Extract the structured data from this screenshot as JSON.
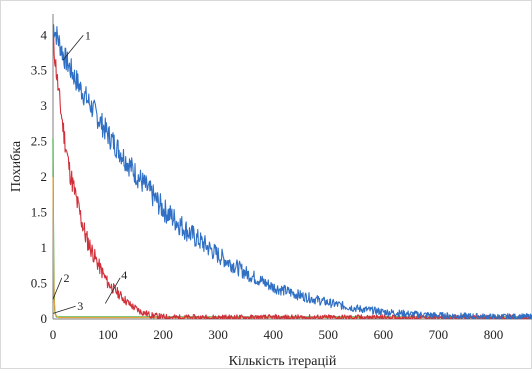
{
  "chart_data": {
    "type": "line",
    "title": "",
    "xlabel": "Кількість ітерацій",
    "ylabel": "Похибка",
    "xlim": [
      0,
      870
    ],
    "ylim": [
      0,
      4.3
    ],
    "x_ticks": [
      0,
      100,
      200,
      300,
      400,
      500,
      600,
      700,
      800
    ],
    "y_ticks": [
      0,
      0.5,
      1,
      1.5,
      2,
      2.5,
      3,
      3.5,
      4
    ],
    "grid": false,
    "legend": "none",
    "series": [
      {
        "label": "1",
        "color": "#2f6fc4",
        "noise": 0.17,
        "seed": 7,
        "points": [
          [
            0,
            4.15
          ],
          [
            20,
            3.7
          ],
          [
            50,
            3.25
          ],
          [
            100,
            2.6
          ],
          [
            150,
            2.05
          ],
          [
            200,
            1.55
          ],
          [
            250,
            1.2
          ],
          [
            300,
            0.9
          ],
          [
            350,
            0.65
          ],
          [
            400,
            0.45
          ],
          [
            450,
            0.33
          ],
          [
            500,
            0.23
          ],
          [
            550,
            0.15
          ],
          [
            600,
            0.1
          ],
          [
            650,
            0.07
          ],
          [
            700,
            0.05
          ],
          [
            750,
            0.04
          ],
          [
            800,
            0.03
          ],
          [
            870,
            0.03
          ]
        ]
      },
      {
        "label": "2",
        "color": "#e6a23c",
        "noise": 0.0,
        "seed": 3,
        "points": [
          [
            0,
            2.0
          ],
          [
            1,
            0.8
          ],
          [
            2,
            0.3
          ],
          [
            4,
            0.06
          ],
          [
            10,
            0.02
          ],
          [
            870,
            0.02
          ]
        ]
      },
      {
        "label": "3",
        "color": "#33a532",
        "noise": 0.0,
        "seed": 5,
        "points": [
          [
            0,
            2.55
          ],
          [
            1,
            1.2
          ],
          [
            2,
            0.45
          ],
          [
            3,
            0.12
          ],
          [
            6,
            0.03
          ],
          [
            870,
            0.03
          ]
        ]
      },
      {
        "label": "4",
        "color": "#d0303a",
        "noise": 0.16,
        "seed": 11,
        "points": [
          [
            0,
            3.95
          ],
          [
            10,
            3.2
          ],
          [
            20,
            2.6
          ],
          [
            30,
            2.1
          ],
          [
            45,
            1.6
          ],
          [
            60,
            1.15
          ],
          [
            80,
            0.8
          ],
          [
            100,
            0.5
          ],
          [
            120,
            0.35
          ],
          [
            140,
            0.2
          ],
          [
            160,
            0.1
          ],
          [
            180,
            0.05
          ],
          [
            200,
            0.03
          ],
          [
            230,
            0.02
          ],
          [
            870,
            0.02
          ]
        ]
      }
    ],
    "annotations": [
      {
        "text": "1",
        "series": 0
      },
      {
        "text": "2",
        "series": 1
      },
      {
        "text": "3",
        "series": 2
      },
      {
        "text": "4",
        "series": 3
      }
    ]
  }
}
